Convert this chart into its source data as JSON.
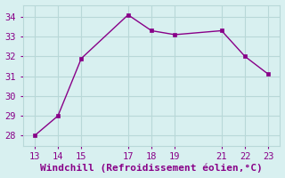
{
  "x": [
    13,
    14,
    15,
    17,
    18,
    19,
    21,
    22,
    23
  ],
  "y": [
    28.0,
    29.0,
    31.9,
    34.1,
    33.3,
    33.1,
    33.3,
    32.0,
    31.1
  ],
  "line_color": "#880088",
  "marker_color": "#880088",
  "bg_color": "#d8f0f0",
  "grid_color": "#b8d8d8",
  "xlabel": "Windchill (Refroidissement éolien,°C)",
  "xlabel_color": "#880088",
  "xticks": [
    13,
    14,
    15,
    17,
    18,
    19,
    21,
    22,
    23
  ],
  "yticks": [
    28,
    29,
    30,
    31,
    32,
    33,
    34
  ],
  "xlim": [
    12.5,
    23.5
  ],
  "ylim": [
    27.5,
    34.6
  ],
  "tick_label_color": "#880088",
  "font_size_ticks": 7.5,
  "font_size_xlabel": 8.0,
  "line_width": 1.0,
  "marker_size": 3.0
}
